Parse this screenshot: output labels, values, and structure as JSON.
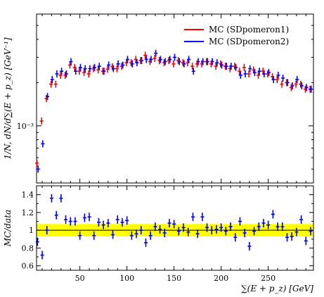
{
  "chart_data": [
    {
      "type": "scatter",
      "panel": "main",
      "ylabel": "1/N, dN/d∑(E + p_z) [GeV⁻¹]",
      "yscale": "log",
      "ylim": [
        0.0004,
        0.006
      ],
      "xlim": [
        4,
        298
      ],
      "ytick_labels": [
        {
          "value": 0.001,
          "text": "10⁻³"
        }
      ],
      "legend_position": "top-right",
      "series": [
        {
          "name": "MC (SDpomeron1)",
          "color": "#ff0000",
          "x": [
            5,
            10,
            15,
            20,
            25,
            30,
            35,
            40,
            45,
            50,
            55,
            60,
            65,
            70,
            75,
            80,
            85,
            90,
            95,
            100,
            105,
            110,
            115,
            120,
            125,
            130,
            135,
            140,
            145,
            150,
            155,
            160,
            165,
            170,
            175,
            180,
            185,
            190,
            195,
            200,
            205,
            210,
            215,
            220,
            225,
            230,
            235,
            240,
            245,
            250,
            255,
            260,
            265,
            270,
            275,
            280,
            285,
            290,
            295
          ],
          "values": [
            0.00055,
            0.00108,
            0.00155,
            0.00195,
            0.00195,
            0.00225,
            0.00225,
            0.00265,
            0.00255,
            0.0024,
            0.00235,
            0.0023,
            0.0025,
            0.00245,
            0.0024,
            0.00248,
            0.00258,
            0.0025,
            0.0026,
            0.00275,
            0.00275,
            0.0029,
            0.00285,
            0.0031,
            0.0028,
            0.00295,
            0.00285,
            0.00275,
            0.00285,
            0.0027,
            0.00285,
            0.00275,
            0.00275,
            0.0026,
            0.0027,
            0.0027,
            0.0028,
            0.0027,
            0.0026,
            0.0027,
            0.0026,
            0.0025,
            0.0026,
            0.0024,
            0.00255,
            0.0023,
            0.00245,
            0.00225,
            0.0024,
            0.0023,
            0.0022,
            0.0021,
            0.00195,
            0.002,
            0.00185,
            0.00195,
            0.00195,
            0.0018,
            0.0018
          ]
        },
        {
          "name": "MC (SDpomeron2)",
          "color": "#0000ff",
          "x": [
            5,
            10,
            15,
            20,
            25,
            30,
            35,
            40,
            45,
            50,
            55,
            60,
            65,
            70,
            75,
            80,
            85,
            90,
            95,
            100,
            105,
            110,
            115,
            120,
            125,
            130,
            135,
            140,
            145,
            150,
            155,
            160,
            165,
            170,
            175,
            180,
            185,
            190,
            195,
            200,
            205,
            210,
            215,
            220,
            225,
            230,
            235,
            240,
            245,
            250,
            255,
            260,
            265,
            270,
            275,
            280,
            285,
            290,
            295
          ],
          "values": [
            0.0005,
            0.00075,
            0.0016,
            0.0021,
            0.0023,
            0.0024,
            0.0023,
            0.0028,
            0.0024,
            0.00255,
            0.0025,
            0.0025,
            0.00255,
            0.0026,
            0.0024,
            0.00265,
            0.0025,
            0.0027,
            0.00265,
            0.0029,
            0.0027,
            0.00275,
            0.00285,
            0.0029,
            0.0029,
            0.0032,
            0.0029,
            0.0028,
            0.0029,
            0.003,
            0.0028,
            0.0027,
            0.0029,
            0.0024,
            0.0028,
            0.0028,
            0.0028,
            0.0028,
            0.00275,
            0.00265,
            0.0026,
            0.0026,
            0.00255,
            0.00225,
            0.0023,
            0.0025,
            0.00235,
            0.0024,
            0.0023,
            0.00235,
            0.0021,
            0.00225,
            0.00215,
            0.002,
            0.0019,
            0.0021,
            0.0019,
            0.00185,
            0.0018
          ]
        }
      ]
    },
    {
      "type": "scatter",
      "panel": "ratio",
      "xlabel": "∑(E + p_z) [GeV]",
      "ylabel": "MC/data",
      "ylim": [
        0.55,
        1.5
      ],
      "xlim": [
        4,
        298
      ],
      "xticks": [
        50,
        100,
        150,
        200,
        250
      ],
      "yticks": [
        0.6,
        0.8,
        1,
        1.2,
        1.4
      ],
      "ytick_labels": [
        "0.6",
        "0.8",
        "1",
        "1.2",
        "1.4"
      ],
      "band": {
        "color": "#ffff00",
        "ymin": 0.93,
        "ymax": 1.07
      },
      "reference_line": 1,
      "series": [
        {
          "name": "MC (SDpomeron2)",
          "color": "#0000ff",
          "x": [
            5,
            10,
            15,
            20,
            25,
            30,
            35,
            40,
            45,
            50,
            55,
            60,
            65,
            70,
            75,
            80,
            85,
            90,
            95,
            100,
            105,
            110,
            115,
            120,
            125,
            130,
            135,
            140,
            145,
            150,
            155,
            160,
            165,
            170,
            175,
            180,
            185,
            190,
            195,
            200,
            205,
            210,
            215,
            220,
            225,
            230,
            235,
            240,
            245,
            250,
            255,
            260,
            265,
            270,
            275,
            280,
            285,
            290,
            295
          ],
          "values": [
            0.87,
            0.72,
            1.0,
            1.36,
            1.17,
            1.36,
            1.12,
            1.1,
            1.1,
            0.94,
            1.14,
            1.15,
            0.94,
            1.09,
            1.06,
            1.08,
            0.95,
            1.12,
            1.09,
            1.11,
            0.94,
            0.96,
            1.0,
            0.86,
            0.94,
            1.04,
            1.01,
            0.97,
            1.08,
            1.07,
            0.99,
            1.03,
            0.98,
            1.15,
            0.96,
            1.15,
            1.03,
            1.0,
            1.01,
            1.03,
            0.99,
            1.04,
            0.92,
            1.1,
            0.97,
            0.82,
            0.99,
            1.04,
            1.08,
            1.06,
            1.18,
            1.04,
            1.04,
            0.92,
            0.93,
            0.98,
            1.12,
            0.88,
            0.99
          ]
        }
      ]
    }
  ]
}
